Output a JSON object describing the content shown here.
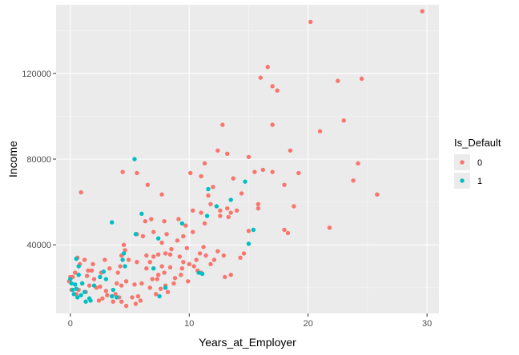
{
  "chart_data": {
    "type": "scatter",
    "xlabel": "Years_at_Employer",
    "ylabel": "Income",
    "xlim": [
      -1.2,
      31.0
    ],
    "ylim": [
      8000,
      152000
    ],
    "x_ticks": [
      0,
      10,
      20,
      30
    ],
    "y_ticks": [
      40000,
      80000,
      120000
    ],
    "x_tick_labels": [
      "0",
      "10",
      "20",
      "30"
    ],
    "y_tick_labels": [
      "40000",
      "80000",
      "120000"
    ],
    "background": "#ebebeb",
    "grid": true,
    "legend": {
      "title": "Is_Default",
      "placement": "right",
      "entries": [
        {
          "label": "0",
          "color": "#f8766d"
        },
        {
          "label": "1",
          "color": "#00bfc4"
        }
      ]
    },
    "series": [
      {
        "name": "0",
        "color": "#f8766d",
        "points": [
          [
            29.6,
            149000
          ],
          [
            20.2,
            144000
          ],
          [
            16.6,
            123000
          ],
          [
            16.0,
            118000
          ],
          [
            17.0,
            114000
          ],
          [
            17.4,
            112000
          ],
          [
            22.5,
            116500
          ],
          [
            24.5,
            117500
          ],
          [
            12.8,
            96000
          ],
          [
            17.0,
            96000
          ],
          [
            23.0,
            98000
          ],
          [
            21.0,
            93000
          ],
          [
            18.5,
            84000
          ],
          [
            12.4,
            84000
          ],
          [
            13.2,
            82500
          ],
          [
            15.0,
            81000
          ],
          [
            11.3,
            78000
          ],
          [
            24.2,
            78000
          ],
          [
            16.2,
            75000
          ],
          [
            15.5,
            74000
          ],
          [
            17.0,
            74000
          ],
          [
            19.2,
            73500
          ],
          [
            10.1,
            73500
          ],
          [
            11.0,
            72000
          ],
          [
            4.4,
            74000
          ],
          [
            5.6,
            73500
          ],
          [
            18.0,
            68000
          ],
          [
            23.8,
            70000
          ],
          [
            13.7,
            71000
          ],
          [
            6.5,
            68000
          ],
          [
            7.7,
            63500
          ],
          [
            12.0,
            67000
          ],
          [
            14.4,
            64000
          ],
          [
            11.6,
            63000
          ],
          [
            25.8,
            63500
          ],
          [
            18.8,
            58000
          ],
          [
            15.8,
            59000
          ],
          [
            15.8,
            57000
          ],
          [
            13.2,
            57000
          ],
          [
            11.8,
            59000
          ],
          [
            12.6,
            56000
          ],
          [
            14.0,
            56000
          ],
          [
            13.5,
            55000
          ],
          [
            11.0,
            55000
          ],
          [
            10.3,
            56000
          ],
          [
            12.6,
            53500
          ],
          [
            9.1,
            52000
          ],
          [
            9.7,
            49000
          ],
          [
            11.3,
            50000
          ],
          [
            13.3,
            53000
          ],
          [
            0.9,
            64500
          ],
          [
            7.9,
            51000
          ],
          [
            10.3,
            46000
          ],
          [
            15.0,
            46500
          ],
          [
            18.0,
            47000
          ],
          [
            18.3,
            45500
          ],
          [
            21.8,
            48000
          ],
          [
            6.3,
            51000
          ],
          [
            6.8,
            52000
          ],
          [
            8.1,
            45000
          ],
          [
            7.0,
            46000
          ],
          [
            6.1,
            44000
          ],
          [
            5.6,
            45000
          ],
          [
            7.7,
            41000
          ],
          [
            9.0,
            42000
          ],
          [
            9.5,
            44000
          ],
          [
            8.5,
            38000
          ],
          [
            9.8,
            38500
          ],
          [
            11.2,
            39000
          ],
          [
            12.4,
            37000
          ],
          [
            14.6,
            36000
          ],
          [
            14.3,
            34000
          ],
          [
            12.9,
            35000
          ],
          [
            11.4,
            35000
          ],
          [
            10.6,
            33000
          ],
          [
            10.0,
            31000
          ],
          [
            9.5,
            32000
          ],
          [
            9.2,
            34500
          ],
          [
            8.4,
            35500
          ],
          [
            8.0,
            36000
          ],
          [
            7.4,
            35500
          ],
          [
            7.0,
            34500
          ],
          [
            6.4,
            35000
          ],
          [
            6.7,
            32000
          ],
          [
            5.6,
            32000
          ],
          [
            4.5,
            40000
          ],
          [
            4.6,
            37500
          ],
          [
            4.3,
            35000
          ],
          [
            4.9,
            33000
          ],
          [
            7.7,
            30000
          ],
          [
            8.4,
            29500
          ],
          [
            9.4,
            29000
          ],
          [
            10.4,
            30000
          ],
          [
            11.8,
            31000
          ],
          [
            12.1,
            33000
          ],
          [
            13.5,
            26000
          ],
          [
            13.0,
            25000
          ],
          [
            11.0,
            27000
          ],
          [
            9.9,
            23000
          ],
          [
            8.7,
            22000
          ],
          [
            8.0,
            21000
          ],
          [
            7.6,
            19500
          ],
          [
            7.2,
            17000
          ],
          [
            8.2,
            18000
          ],
          [
            6.7,
            20000
          ],
          [
            6.0,
            22000
          ],
          [
            5.4,
            21500
          ],
          [
            4.7,
            23000
          ],
          [
            4.3,
            21000
          ],
          [
            5.7,
            16000
          ],
          [
            5.9,
            14000
          ],
          [
            5.5,
            12500
          ],
          [
            5.2,
            15500
          ],
          [
            4.7,
            11500
          ],
          [
            4.3,
            13500
          ],
          [
            4.1,
            15500
          ],
          [
            3.8,
            17000
          ],
          [
            3.0,
            18500
          ],
          [
            2.7,
            15000
          ],
          [
            2.4,
            14000
          ],
          [
            2.2,
            20000
          ],
          [
            2.0,
            24000
          ],
          [
            2.6,
            27000
          ],
          [
            2.9,
            33000
          ],
          [
            3.3,
            29000
          ],
          [
            1.9,
            31000
          ],
          [
            1.5,
            28000
          ],
          [
            1.4,
            25500
          ],
          [
            1.0,
            22000
          ],
          [
            0.7,
            19000
          ],
          [
            0.5,
            17000
          ],
          [
            0.2,
            25000
          ],
          [
            0.0,
            25000
          ],
          [
            -0.1,
            23000
          ],
          [
            0.1,
            19000
          ],
          [
            0.4,
            27000
          ],
          [
            0.8,
            31000
          ],
          [
            1.2,
            33000
          ],
          [
            0.6,
            34000
          ],
          [
            1.8,
            28000
          ],
          [
            1.6,
            21000
          ],
          [
            1.3,
            18000
          ],
          [
            2.5,
            20500
          ],
          [
            3.1,
            16500
          ],
          [
            3.6,
            13500
          ],
          [
            3.9,
            22000
          ],
          [
            4.0,
            27000
          ],
          [
            4.2,
            30000
          ],
          [
            6.4,
            29000
          ],
          [
            7.4,
            26000
          ],
          [
            6.9,
            24000
          ],
          [
            7.3,
            24000
          ],
          [
            7.9,
            27000
          ],
          [
            8.8,
            24500
          ],
          [
            9.3,
            26000
          ],
          [
            10.9,
            36000
          ],
          [
            10.7,
            28000
          ]
        ]
      },
      {
        "name": "1",
        "color": "#00bfc4",
        "points": [
          [
            5.4,
            80000
          ],
          [
            6.0,
            54500
          ],
          [
            3.5,
            50500
          ],
          [
            9.4,
            50000
          ],
          [
            11.6,
            66000
          ],
          [
            12.3,
            58000
          ],
          [
            13.5,
            61000
          ],
          [
            14.7,
            69500
          ],
          [
            15.4,
            47000
          ],
          [
            15.0,
            40500
          ],
          [
            11.5,
            53500
          ],
          [
            7.4,
            43000
          ],
          [
            5.5,
            45000
          ],
          [
            4.5,
            36000
          ],
          [
            4.4,
            33000
          ],
          [
            4.6,
            30000
          ],
          [
            7.0,
            29000
          ],
          [
            7.5,
            16000
          ],
          [
            8.0,
            20000
          ],
          [
            10.8,
            27000
          ],
          [
            11.1,
            26500
          ],
          [
            3.6,
            19000
          ],
          [
            3.5,
            16000
          ],
          [
            3.9,
            15500
          ],
          [
            2.8,
            27500
          ],
          [
            2.5,
            25000
          ],
          [
            3.0,
            24000
          ],
          [
            1.6,
            15000
          ],
          [
            1.2,
            18000
          ],
          [
            1.0,
            22000
          ],
          [
            0.7,
            26000
          ],
          [
            0.5,
            33500
          ],
          [
            0.7,
            30000
          ],
          [
            0.4,
            21500
          ],
          [
            0.2,
            19000
          ],
          [
            0.3,
            17000
          ],
          [
            0.6,
            15500
          ],
          [
            0.5,
            19500
          ],
          [
            0.9,
            16500
          ],
          [
            1.7,
            14000
          ],
          [
            1.3,
            13500
          ],
          [
            2.0,
            21000
          ],
          [
            0.1,
            22000
          ],
          [
            0.0,
            24000
          ]
        ]
      }
    ]
  }
}
